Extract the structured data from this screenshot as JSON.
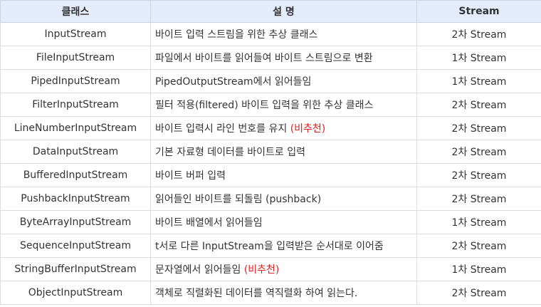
{
  "table": {
    "headers": [
      "클래스",
      "설 명",
      "Stream"
    ],
    "rows": [
      {
        "name": "InputStream",
        "desc": "바이트 입력 스트림을 위한 추상 클래스",
        "note": "",
        "type": "2차 Stream"
      },
      {
        "name": "FileInputStream",
        "desc": "파일에서 바이트를 읽어들여 바이트 스트림으로 변환",
        "note": "",
        "type": "1차 Stream"
      },
      {
        "name": "PipedInputStream",
        "desc": "PipedOutputStream에서 읽어들임",
        "note": "",
        "type": "1차 Stream"
      },
      {
        "name": "FilterInputStream",
        "desc": "필터 적용(filtered) 바이트 입력을 위한 추상 클래스",
        "note": "",
        "type": "2차 Stream"
      },
      {
        "name": "LineNumberInputStream",
        "desc": "바이트 입력시 라인 번호를 유지 ",
        "note": "(비추천)",
        "type": "2차 Stream"
      },
      {
        "name": "DataInputStream",
        "desc": "기본 자료형 데이터를 바이트로 입력",
        "note": "",
        "type": "2차 Stream"
      },
      {
        "name": "BufferedInputStream",
        "desc": "바이트 버퍼 입력",
        "note": "",
        "type": "2차 Stream"
      },
      {
        "name": "PushbackInputStream",
        "desc": "읽어들인 바이트를 되돌림 (pushback)",
        "note": "",
        "type": "2차 Stream"
      },
      {
        "name": "ByteArrayInputStream",
        "desc": "바이트 배열에서 읽어들임",
        "note": "",
        "type": "1차 Stream"
      },
      {
        "name": "SequenceInputStream",
        "desc": "t서로 다른 InputStream을 입력받은 순서대로 이어줌",
        "note": "",
        "type": "2차 Stream"
      },
      {
        "name": "StringBufferInputStream",
        "desc": "문자열에서 읽어들임 ",
        "note": "(비추천)",
        "type": "1차 Stream"
      },
      {
        "name": "ObjectInputStream",
        "desc": "객체로 직렬화된 데이터를 역직렬화 하여 읽는다.",
        "note": "",
        "type": "2차 Stream"
      }
    ]
  },
  "colors": {
    "header_bg": "#e4ebfa",
    "note_red": "#e02020",
    "border": "#dcdcdc"
  }
}
